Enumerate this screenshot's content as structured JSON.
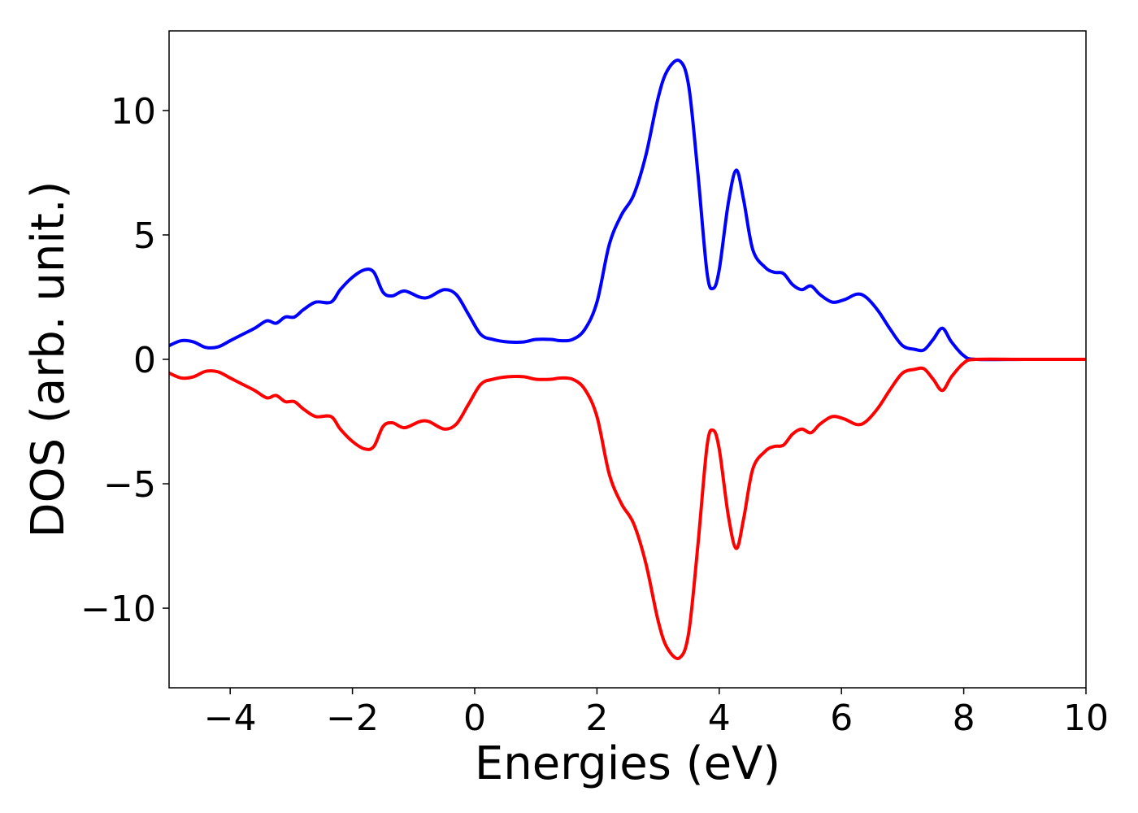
{
  "chart_data": {
    "type": "line",
    "title": "",
    "xlabel": "Energies (eV)",
    "ylabel": "DOS (arb. unit.)",
    "xlim": [
      -5,
      10
    ],
    "ylim": [
      -13.2,
      13.2
    ],
    "xticks": [
      -4,
      -2,
      0,
      2,
      4,
      6,
      8,
      10
    ],
    "xtick_labels": [
      "−4",
      "−2",
      "0",
      "2",
      "4",
      "6",
      "8",
      "10"
    ],
    "yticks": [
      10,
      5,
      0,
      -5,
      -10
    ],
    "ytick_labels": [
      "10",
      "5",
      "0",
      "−5",
      "−10"
    ],
    "grid": false,
    "legend": "none",
    "series": [
      {
        "color": "#0000ff",
        "points": [
          [
            -5.0,
            0.55
          ],
          [
            -4.8,
            0.75
          ],
          [
            -4.6,
            0.7
          ],
          [
            -4.4,
            0.48
          ],
          [
            -4.2,
            0.5
          ],
          [
            -4.0,
            0.75
          ],
          [
            -3.8,
            1.0
          ],
          [
            -3.6,
            1.25
          ],
          [
            -3.4,
            1.55
          ],
          [
            -3.25,
            1.45
          ],
          [
            -3.1,
            1.7
          ],
          [
            -2.95,
            1.7
          ],
          [
            -2.8,
            2.0
          ],
          [
            -2.6,
            2.3
          ],
          [
            -2.35,
            2.3
          ],
          [
            -2.2,
            2.8
          ],
          [
            -2.0,
            3.3
          ],
          [
            -1.8,
            3.6
          ],
          [
            -1.65,
            3.5
          ],
          [
            -1.5,
            2.7
          ],
          [
            -1.35,
            2.55
          ],
          [
            -1.15,
            2.75
          ],
          [
            -0.9,
            2.5
          ],
          [
            -0.75,
            2.5
          ],
          [
            -0.5,
            2.8
          ],
          [
            -0.3,
            2.6
          ],
          [
            -0.1,
            1.8
          ],
          [
            0.1,
            1.0
          ],
          [
            0.3,
            0.8
          ],
          [
            0.55,
            0.7
          ],
          [
            0.8,
            0.7
          ],
          [
            1.0,
            0.8
          ],
          [
            1.25,
            0.8
          ],
          [
            1.4,
            0.75
          ],
          [
            1.6,
            0.8
          ],
          [
            1.8,
            1.2
          ],
          [
            2.0,
            2.3
          ],
          [
            2.2,
            4.6
          ],
          [
            2.4,
            5.8
          ],
          [
            2.6,
            6.6
          ],
          [
            2.8,
            8.2
          ],
          [
            3.0,
            10.5
          ],
          [
            3.15,
            11.6
          ],
          [
            3.35,
            12.0
          ],
          [
            3.5,
            11.0
          ],
          [
            3.65,
            7.5
          ],
          [
            3.8,
            3.5
          ],
          [
            3.9,
            2.85
          ],
          [
            4.0,
            3.6
          ],
          [
            4.15,
            6.3
          ],
          [
            4.28,
            7.6
          ],
          [
            4.4,
            6.4
          ],
          [
            4.55,
            4.4
          ],
          [
            4.75,
            3.7
          ],
          [
            4.9,
            3.5
          ],
          [
            5.05,
            3.45
          ],
          [
            5.2,
            3.0
          ],
          [
            5.35,
            2.8
          ],
          [
            5.5,
            2.95
          ],
          [
            5.65,
            2.6
          ],
          [
            5.85,
            2.3
          ],
          [
            6.05,
            2.4
          ],
          [
            6.25,
            2.62
          ],
          [
            6.4,
            2.5
          ],
          [
            6.6,
            1.95
          ],
          [
            6.8,
            1.2
          ],
          [
            7.0,
            0.55
          ],
          [
            7.2,
            0.4
          ],
          [
            7.35,
            0.38
          ],
          [
            7.5,
            0.8
          ],
          [
            7.65,
            1.25
          ],
          [
            7.8,
            0.7
          ],
          [
            8.0,
            0.15
          ],
          [
            8.2,
            0.0
          ],
          [
            9.0,
            0.0
          ],
          [
            10.0,
            0.0
          ]
        ]
      },
      {
        "color": "#ff0000",
        "points": [
          [
            -5.0,
            -0.55
          ],
          [
            -4.8,
            -0.75
          ],
          [
            -4.6,
            -0.7
          ],
          [
            -4.4,
            -0.48
          ],
          [
            -4.2,
            -0.5
          ],
          [
            -4.0,
            -0.75
          ],
          [
            -3.8,
            -1.0
          ],
          [
            -3.6,
            -1.25
          ],
          [
            -3.4,
            -1.55
          ],
          [
            -3.25,
            -1.45
          ],
          [
            -3.1,
            -1.7
          ],
          [
            -2.95,
            -1.7
          ],
          [
            -2.8,
            -2.0
          ],
          [
            -2.6,
            -2.3
          ],
          [
            -2.35,
            -2.3
          ],
          [
            -2.2,
            -2.8
          ],
          [
            -2.0,
            -3.3
          ],
          [
            -1.8,
            -3.6
          ],
          [
            -1.65,
            -3.5
          ],
          [
            -1.5,
            -2.7
          ],
          [
            -1.35,
            -2.55
          ],
          [
            -1.15,
            -2.75
          ],
          [
            -0.9,
            -2.5
          ],
          [
            -0.75,
            -2.5
          ],
          [
            -0.5,
            -2.8
          ],
          [
            -0.3,
            -2.6
          ],
          [
            -0.1,
            -1.8
          ],
          [
            0.1,
            -1.0
          ],
          [
            0.3,
            -0.8
          ],
          [
            0.55,
            -0.7
          ],
          [
            0.8,
            -0.7
          ],
          [
            1.0,
            -0.8
          ],
          [
            1.25,
            -0.8
          ],
          [
            1.4,
            -0.75
          ],
          [
            1.6,
            -0.8
          ],
          [
            1.8,
            -1.2
          ],
          [
            2.0,
            -2.3
          ],
          [
            2.2,
            -4.6
          ],
          [
            2.4,
            -5.8
          ],
          [
            2.6,
            -6.6
          ],
          [
            2.8,
            -8.2
          ],
          [
            3.0,
            -10.5
          ],
          [
            3.15,
            -11.6
          ],
          [
            3.35,
            -12.0
          ],
          [
            3.5,
            -11.0
          ],
          [
            3.65,
            -7.5
          ],
          [
            3.8,
            -3.5
          ],
          [
            3.9,
            -2.85
          ],
          [
            4.0,
            -3.6
          ],
          [
            4.15,
            -6.3
          ],
          [
            4.28,
            -7.6
          ],
          [
            4.4,
            -6.4
          ],
          [
            4.55,
            -4.4
          ],
          [
            4.75,
            -3.7
          ],
          [
            4.9,
            -3.5
          ],
          [
            5.05,
            -3.45
          ],
          [
            5.2,
            -3.0
          ],
          [
            5.35,
            -2.8
          ],
          [
            5.5,
            -2.95
          ],
          [
            5.65,
            -2.6
          ],
          [
            5.85,
            -2.3
          ],
          [
            6.05,
            -2.4
          ],
          [
            6.25,
            -2.62
          ],
          [
            6.4,
            -2.5
          ],
          [
            6.6,
            -1.95
          ],
          [
            6.8,
            -1.2
          ],
          [
            7.0,
            -0.55
          ],
          [
            7.2,
            -0.4
          ],
          [
            7.35,
            -0.38
          ],
          [
            7.5,
            -0.8
          ],
          [
            7.65,
            -1.25
          ],
          [
            7.8,
            -0.7
          ],
          [
            8.0,
            -0.15
          ],
          [
            8.2,
            0.0
          ],
          [
            9.0,
            0.0
          ],
          [
            10.0,
            0.0
          ]
        ]
      }
    ]
  }
}
